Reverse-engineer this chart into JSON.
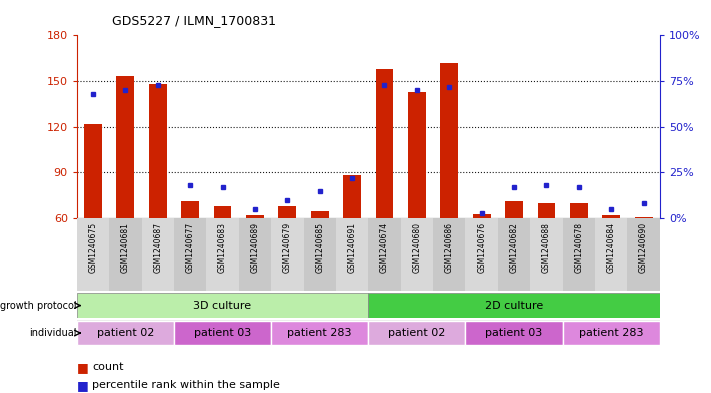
{
  "title": "GDS5227 / ILMN_1700831",
  "samples": [
    "GSM1240675",
    "GSM1240681",
    "GSM1240687",
    "GSM1240677",
    "GSM1240683",
    "GSM1240689",
    "GSM1240679",
    "GSM1240685",
    "GSM1240691",
    "GSM1240674",
    "GSM1240680",
    "GSM1240686",
    "GSM1240676",
    "GSM1240682",
    "GSM1240688",
    "GSM1240678",
    "GSM1240684",
    "GSM1240690"
  ],
  "counts": [
    122,
    153,
    148,
    71,
    68,
    62,
    68,
    65,
    88,
    158,
    143,
    162,
    63,
    71,
    70,
    70,
    62,
    61
  ],
  "percentiles": [
    68,
    70,
    73,
    18,
    17,
    5,
    10,
    15,
    22,
    73,
    70,
    72,
    3,
    17,
    18,
    17,
    5,
    8
  ],
  "y_min": 60,
  "y_max": 180,
  "yticks_left": [
    60,
    90,
    120,
    150,
    180
  ],
  "yticks_right": [
    0,
    25,
    50,
    75,
    100
  ],
  "grid_lines": [
    90,
    120,
    150
  ],
  "bar_color": "#cc2200",
  "dot_color": "#2222cc",
  "growth_protocol_groups": [
    {
      "label": "3D culture",
      "start": 0,
      "end": 9,
      "color": "#bbeeaa"
    },
    {
      "label": "2D culture",
      "start": 9,
      "end": 18,
      "color": "#44cc44"
    }
  ],
  "individual_groups": [
    {
      "label": "patient 02",
      "start": 0,
      "end": 3,
      "color": "#ddaadd"
    },
    {
      "label": "patient 03",
      "start": 3,
      "end": 6,
      "color": "#cc66cc"
    },
    {
      "label": "patient 283",
      "start": 6,
      "end": 9,
      "color": "#dd88dd"
    },
    {
      "label": "patient 02",
      "start": 9,
      "end": 12,
      "color": "#ddaadd"
    },
    {
      "label": "patient 03",
      "start": 12,
      "end": 15,
      "color": "#cc66cc"
    },
    {
      "label": "patient 283",
      "start": 15,
      "end": 18,
      "color": "#dd88dd"
    }
  ],
  "legend_count_color": "#cc2200",
  "legend_pct_color": "#2222cc",
  "ylabel_left_color": "#cc2200",
  "ylabel_right_color": "#2222cc",
  "sample_area_color": "#d0d0d0"
}
